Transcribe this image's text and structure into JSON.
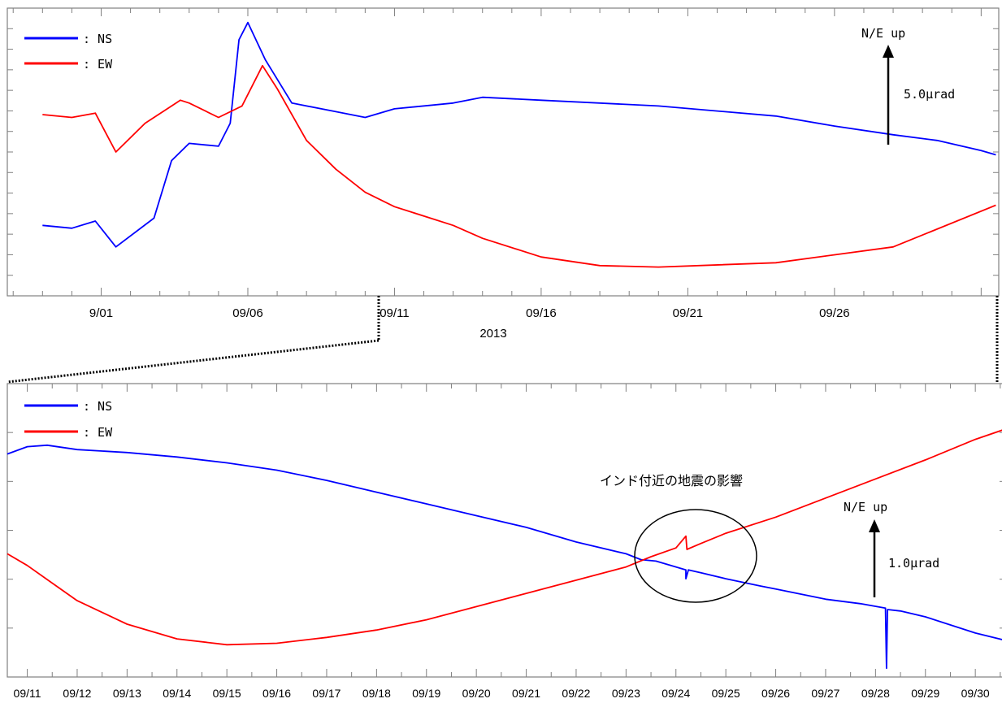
{
  "colors": {
    "ns": "#0000ff",
    "ew": "#ff0000",
    "axis": "#808080"
  },
  "top_chart": {
    "year_label": "2013",
    "x_tick_labels": [
      "9/01",
      "09/06",
      "09/11",
      "09/16",
      "09/21",
      "09/26"
    ],
    "legend": [
      {
        "label": ": NS",
        "color": "#0000ff"
      },
      {
        "label": ": EW",
        "color": "#ff0000"
      }
    ],
    "scale_bar": {
      "direction_label": "N/E up",
      "magnitude_label": "5.0μrad"
    }
  },
  "bottom_chart": {
    "x_tick_labels": [
      "09/11",
      "09/12",
      "09/13",
      "09/14",
      "09/15",
      "09/16",
      "09/17",
      "09/18",
      "09/19",
      "09/20",
      "09/21",
      "09/22",
      "09/23",
      "09/24",
      "09/25",
      "09/26",
      "09/27",
      "09/28",
      "09/29",
      "09/30"
    ],
    "legend": [
      {
        "label": ": NS",
        "color": "#0000ff"
      },
      {
        "label": ": EW",
        "color": "#ff0000"
      }
    ],
    "scale_bar": {
      "direction_label": "N/E up",
      "magnitude_label": "1.0μrad"
    },
    "annotation": "インド付近の地震の影響"
  },
  "chart_data": [
    {
      "type": "line",
      "xlabel": "2013",
      "ylabel": "",
      "x_unit": "day (day 1 = 9/01)",
      "xlim": [
        -2.2,
        31.6
      ],
      "ylim": [
        0,
        100
      ],
      "x_tick_labels": [
        "9/01",
        "09/06",
        "09/11",
        "09/16",
        "09/21",
        "09/26"
      ],
      "x_tick_positions": [
        1,
        6,
        11,
        16,
        21,
        26
      ],
      "scale": "5.0μrad",
      "series": [
        {
          "name": "NS",
          "color": "#0000ff",
          "points": [
            [
              -1,
              24.5
            ],
            [
              0,
              23.5
            ],
            [
              0.8,
              26
            ],
            [
              1.5,
              17
            ],
            [
              2.8,
              27
            ],
            [
              3.4,
              47
            ],
            [
              4,
              53
            ],
            [
              5,
              52
            ],
            [
              5.4,
              60
            ],
            [
              5.7,
              89
            ],
            [
              6,
              95
            ],
            [
              6.6,
              82
            ],
            [
              7.5,
              67
            ],
            [
              9,
              64
            ],
            [
              10,
              62
            ],
            [
              11,
              65
            ],
            [
              13,
              67
            ],
            [
              14,
              69
            ],
            [
              16,
              68
            ],
            [
              20,
              66
            ],
            [
              24,
              62.5
            ],
            [
              26,
              59
            ],
            [
              28,
              56
            ],
            [
              29.5,
              54
            ],
            [
              31,
              50.5
            ],
            [
              31.5,
              49
            ]
          ]
        },
        {
          "name": "EW",
          "color": "#ff0000",
          "points": [
            [
              -1,
              63
            ],
            [
              0,
              62
            ],
            [
              0.8,
              63.5
            ],
            [
              1.5,
              50
            ],
            [
              2.5,
              60
            ],
            [
              3.7,
              68
            ],
            [
              4,
              67
            ],
            [
              5,
              62
            ],
            [
              5.8,
              66
            ],
            [
              6.5,
              80
            ],
            [
              7,
              72
            ],
            [
              8,
              54
            ],
            [
              9,
              44
            ],
            [
              10,
              36
            ],
            [
              11,
              31
            ],
            [
              13,
              24.5
            ],
            [
              14,
              20
            ],
            [
              16,
              13.5
            ],
            [
              18,
              10.5
            ],
            [
              20,
              10
            ],
            [
              24,
              11.5
            ],
            [
              28,
              17
            ],
            [
              31.5,
              31.5
            ]
          ]
        }
      ]
    },
    {
      "type": "line",
      "xlabel": "",
      "ylabel": "",
      "x_unit": "day of September 2013",
      "xlim": [
        10.6,
        30.6
      ],
      "ylim": [
        0,
        100
      ],
      "x_tick_labels": [
        "09/11",
        "09/12",
        "09/13",
        "09/14",
        "09/15",
        "09/16",
        "09/17",
        "09/18",
        "09/19",
        "09/20",
        "09/21",
        "09/22",
        "09/23",
        "09/24",
        "09/25",
        "09/26",
        "09/27",
        "09/28",
        "09/29",
        "09/30"
      ],
      "x_tick_positions": [
        11,
        12,
        13,
        14,
        15,
        16,
        17,
        18,
        19,
        20,
        21,
        22,
        23,
        24,
        25,
        26,
        27,
        28,
        29,
        30
      ],
      "scale": "1.0μrad",
      "series": [
        {
          "name": "NS",
          "color": "#0000ff",
          "points": [
            [
              10.6,
              76
            ],
            [
              11,
              78.5
            ],
            [
              11.4,
              79
            ],
            [
              12,
              77.5
            ],
            [
              13,
              76.5
            ],
            [
              14,
              75
            ],
            [
              15,
              73
            ],
            [
              16,
              70.5
            ],
            [
              17,
              67
            ],
            [
              18,
              63
            ],
            [
              19,
              59
            ],
            [
              20,
              55
            ],
            [
              21,
              51
            ],
            [
              22,
              46
            ],
            [
              23,
              42
            ],
            [
              23.3,
              40
            ],
            [
              23.6,
              39.5
            ],
            [
              24,
              37.5
            ],
            [
              24.2,
              36.5
            ],
            [
              24.2,
              33.5
            ],
            [
              24.25,
              36.5
            ],
            [
              24.5,
              35.5
            ],
            [
              25,
              33.5
            ],
            [
              25.7,
              31
            ],
            [
              26,
              30
            ],
            [
              27,
              26.5
            ],
            [
              27.7,
              25
            ],
            [
              28.2,
              23.5
            ],
            [
              28.22,
              3
            ],
            [
              28.24,
              23
            ],
            [
              28.5,
              22.5
            ],
            [
              29,
              20.5
            ],
            [
              30,
              15
            ],
            [
              30.6,
              12.5
            ]
          ]
        },
        {
          "name": "EW",
          "color": "#ff0000",
          "points": [
            [
              10.6,
              42
            ],
            [
              11,
              38
            ],
            [
              11.5,
              32
            ],
            [
              12,
              26
            ],
            [
              13,
              18
            ],
            [
              14,
              13
            ],
            [
              15,
              11
            ],
            [
              16,
              11.5
            ],
            [
              17,
              13.5
            ],
            [
              18,
              16
            ],
            [
              19,
              19.5
            ],
            [
              20,
              24
            ],
            [
              21,
              28.5
            ],
            [
              22,
              33
            ],
            [
              23,
              37.5
            ],
            [
              23.5,
              41
            ],
            [
              24,
              44
            ],
            [
              24.2,
              48
            ],
            [
              24.22,
              43.5
            ],
            [
              24.5,
              45.5
            ],
            [
              25,
              49
            ],
            [
              26,
              54.5
            ],
            [
              27,
              61
            ],
            [
              28,
              67.5
            ],
            [
              29,
              74
            ],
            [
              30,
              81
            ],
            [
              30.6,
              84.5
            ]
          ]
        }
      ]
    }
  ]
}
